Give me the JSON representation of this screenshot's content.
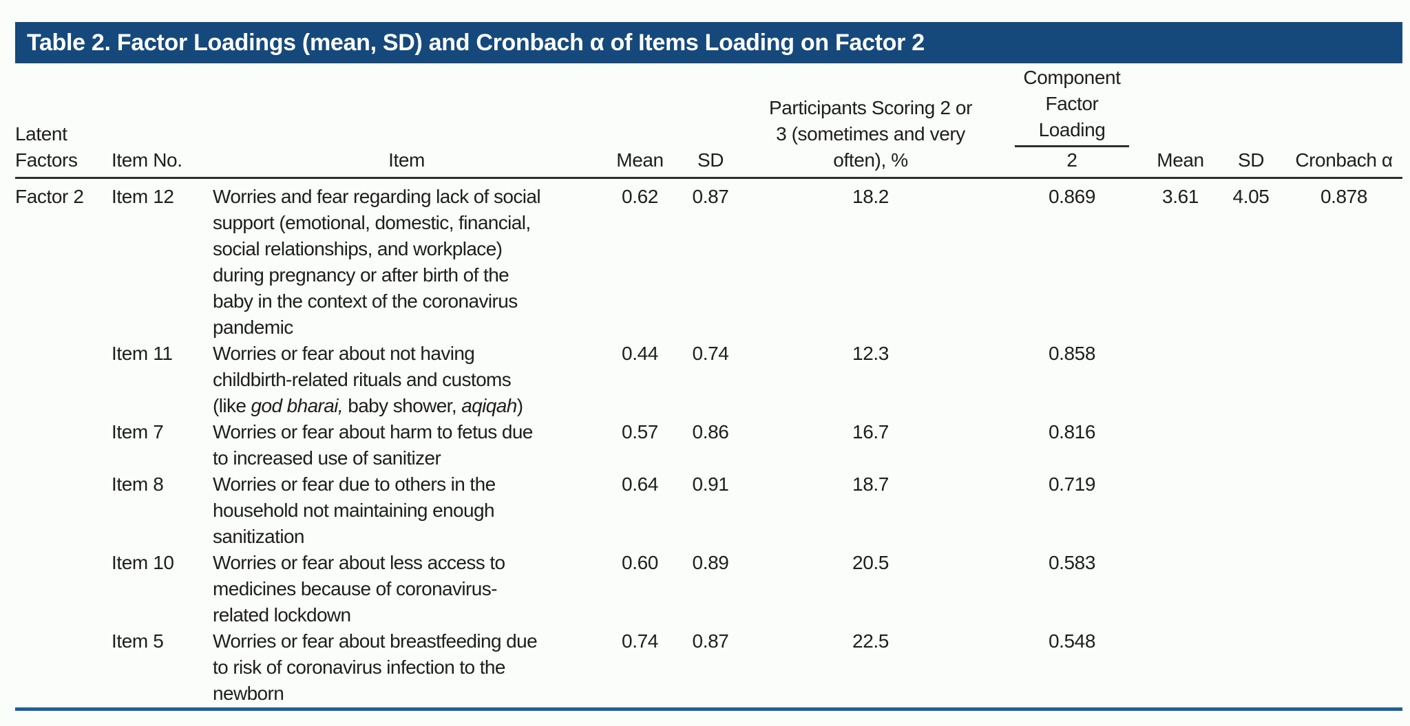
{
  "title": "Table 2. Factor Loadings (mean, SD) and Cronbach α of Items Loading on Factor 2",
  "columns": {
    "latent_factors": "Latent\nFactors",
    "item_no": "Item No.",
    "item": "Item",
    "mean": "Mean",
    "sd": "SD",
    "participants": "Participants Scoring 2 or\n3 (sometimes and very\noften), %",
    "component_factor_loading": "Component\nFactor\nLoading",
    "component_sub": "2",
    "overall_mean": "Mean",
    "overall_sd": "SD",
    "cronbach_alpha": "Cronbach α"
  },
  "rows": [
    {
      "latent_factor": "Factor 2",
      "item_no": "Item 12",
      "item_lines": [
        [
          {
            "t": "Worries and fear regarding lack of social"
          }
        ],
        [
          {
            "t": "support (emotional, domestic, financial,"
          }
        ],
        [
          {
            "t": "social relationships, and workplace)"
          }
        ],
        [
          {
            "t": "during pregnancy or after birth of the"
          }
        ],
        [
          {
            "t": "baby in the context of the coronavirus"
          }
        ],
        [
          {
            "t": "pandemic"
          }
        ]
      ],
      "mean": "0.62",
      "sd": "0.87",
      "participants_pct": "18.2",
      "loading": "0.869",
      "overall_mean": "3.61",
      "overall_sd": "4.05",
      "cronbach_alpha": "0.878"
    },
    {
      "latent_factor": "",
      "item_no": "Item 11",
      "item_lines": [
        [
          {
            "t": "Worries or fear about not having"
          }
        ],
        [
          {
            "t": "childbirth-related rituals and customs"
          }
        ],
        [
          {
            "t": "(like "
          },
          {
            "t": "god bharai,",
            "i": true
          },
          {
            "t": " baby shower, "
          },
          {
            "t": "aqiqah",
            "i": true
          },
          {
            "t": ")"
          }
        ]
      ],
      "mean": "0.44",
      "sd": "0.74",
      "participants_pct": "12.3",
      "loading": "0.858",
      "overall_mean": "",
      "overall_sd": "",
      "cronbach_alpha": ""
    },
    {
      "latent_factor": "",
      "item_no": "Item 7",
      "item_lines": [
        [
          {
            "t": "Worries or fear about harm to fetus due"
          }
        ],
        [
          {
            "t": "to increased use of sanitizer"
          }
        ]
      ],
      "mean": "0.57",
      "sd": "0.86",
      "participants_pct": "16.7",
      "loading": "0.816",
      "overall_mean": "",
      "overall_sd": "",
      "cronbach_alpha": ""
    },
    {
      "latent_factor": "",
      "item_no": "Item 8",
      "item_lines": [
        [
          {
            "t": "Worries or fear due to others in the"
          }
        ],
        [
          {
            "t": "household not maintaining enough"
          }
        ],
        [
          {
            "t": "sanitization"
          }
        ]
      ],
      "mean": "0.64",
      "sd": "0.91",
      "participants_pct": "18.7",
      "loading": "0.719",
      "overall_mean": "",
      "overall_sd": "",
      "cronbach_alpha": ""
    },
    {
      "latent_factor": "",
      "item_no": "Item 10",
      "item_lines": [
        [
          {
            "t": "Worries or fear about less access to"
          }
        ],
        [
          {
            "t": "medicines because of coronavirus-"
          }
        ],
        [
          {
            "t": "related lockdown"
          }
        ]
      ],
      "mean": "0.60",
      "sd": "0.89",
      "participants_pct": "20.5",
      "loading": "0.583",
      "overall_mean": "",
      "overall_sd": "",
      "cronbach_alpha": ""
    },
    {
      "latent_factor": "",
      "item_no": "Item 5",
      "item_lines": [
        [
          {
            "t": "Worries or fear about breastfeeding due"
          }
        ],
        [
          {
            "t": "to risk of coronavirus infection to the"
          }
        ],
        [
          {
            "t": "newborn"
          }
        ]
      ],
      "mean": "0.74",
      "sd": "0.87",
      "participants_pct": "22.5",
      "loading": "0.548",
      "overall_mean": "",
      "overall_sd": "",
      "cronbach_alpha": ""
    }
  ],
  "colors": {
    "header_bar": "#16497B",
    "bottom_rule": "#1E5F9B",
    "text": "#1E1E1C",
    "background": "#FAFDF9"
  }
}
